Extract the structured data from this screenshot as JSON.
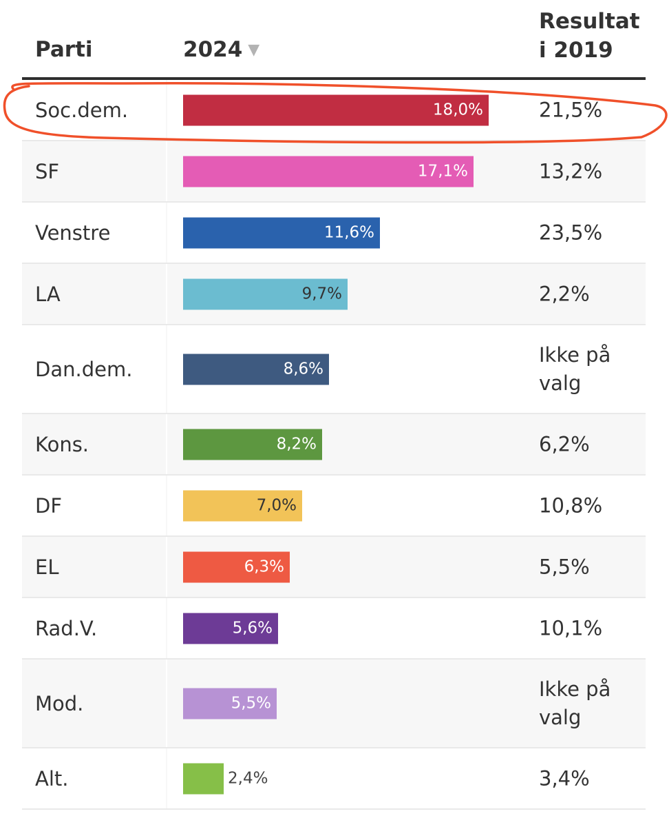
{
  "header": {
    "party": "Parti",
    "year": "2024",
    "sort_icon": "triangle-down-icon",
    "previous_line1": "Resultat",
    "previous_line2": "i 2019"
  },
  "colors": {
    "annotation": "#f0502a"
  },
  "chart_data": {
    "type": "bar",
    "orientation": "horizontal",
    "title": "",
    "xlabel": "2024",
    "ylabel": "Parti",
    "xlim": [
      0,
      18.0
    ],
    "categories": [
      "Soc.dem.",
      "SF",
      "Venstre",
      "LA",
      "Dan.dem.",
      "Kons.",
      "DF",
      "EL",
      "Rad.V.",
      "Mod.",
      "Alt."
    ],
    "values": [
      18.0,
      17.1,
      11.6,
      9.7,
      8.6,
      8.2,
      7.0,
      6.3,
      5.6,
      5.5,
      2.4
    ],
    "value_labels": [
      "18,0%",
      "17,1%",
      "11,6%",
      "9,7%",
      "8,6%",
      "8,2%",
      "7,0%",
      "6,3%",
      "5,6%",
      "5,5%",
      "2,4%"
    ],
    "bar_colors": [
      "#c12d42",
      "#e45cb5",
      "#2a62ad",
      "#6bbcd0",
      "#3e5a80",
      "#5d9740",
      "#f2c358",
      "#ee5a43",
      "#6d3b96",
      "#b792d4",
      "#86bf48"
    ],
    "label_colors": [
      "#ffffff",
      "#ffffff",
      "#ffffff",
      "#333333",
      "#ffffff",
      "#ffffff",
      "#333333",
      "#ffffff",
      "#ffffff",
      "#ffffff",
      "#444444"
    ],
    "previous_result": [
      "21,5%",
      "13,2%",
      "23,5%",
      "2,2%",
      "Ikke på valg",
      "6,2%",
      "10,8%",
      "5,5%",
      "10,1%",
      "Ikke på valg",
      "3,4%"
    ],
    "highlighted": "Soc.dem."
  }
}
